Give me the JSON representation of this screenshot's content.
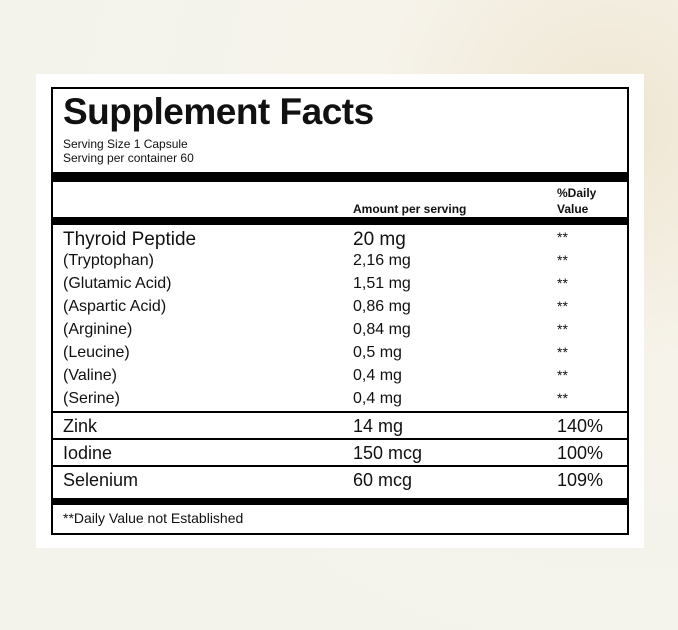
{
  "header": {
    "title": "Supplement Facts",
    "serving_size": "Serving Size 1 Capsule",
    "servings": "Serving per container 60"
  },
  "table": {
    "columns": [
      "Amount per serving",
      "%Daily Value"
    ],
    "peptide_rows": [
      [
        "Thyroid Peptide",
        "20 mg",
        "**"
      ],
      [
        "(Tryptophan)",
        "2,16 mg",
        "**"
      ],
      [
        "(Glutamic Acid)",
        "1,51 mg",
        "**"
      ],
      [
        "(Aspartic Acid)",
        "0,86 mg",
        "**"
      ],
      [
        "(Arginine)",
        "0,84 mg",
        "**"
      ],
      [
        "(Leucine)",
        "0,5 mg",
        "**"
      ],
      [
        "(Valine)",
        "0,4 mg",
        "**"
      ],
      [
        "(Serine)",
        "0,4 mg",
        "**"
      ]
    ],
    "mineral_rows": [
      [
        "Zink",
        "14 mg",
        "140%"
      ],
      [
        "Iodine",
        "150 mcg",
        "100%"
      ],
      [
        "Selenium",
        "60 mcg",
        "109%"
      ]
    ]
  },
  "footnote": "**Daily Value not Established"
}
